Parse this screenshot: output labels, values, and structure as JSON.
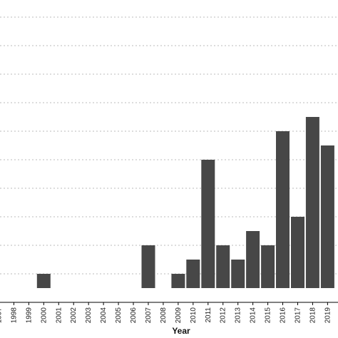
{
  "chart_data": {
    "type": "bar",
    "title": "",
    "xlabel": "Year",
    "ylabel": "",
    "categories": [
      "1997",
      "1998",
      "1999",
      "2000",
      "2001",
      "2002",
      "2003",
      "2004",
      "2005",
      "2006",
      "2007",
      "2008",
      "2009",
      "2010",
      "2011",
      "2012",
      "2013",
      "2014",
      "2015",
      "2016",
      "2017",
      "2018",
      "2019"
    ],
    "values": [
      0,
      0,
      0,
      1,
      0,
      0,
      0,
      0,
      0,
      0,
      3,
      0,
      1,
      2,
      9,
      3,
      2,
      4,
      3,
      11,
      5,
      12,
      10
    ],
    "ylim": [
      0,
      20
    ],
    "grid": true,
    "grid_style": "dotted-horizontal",
    "bar_color": "#474747",
    "grid_color": "#bbbbbb"
  }
}
